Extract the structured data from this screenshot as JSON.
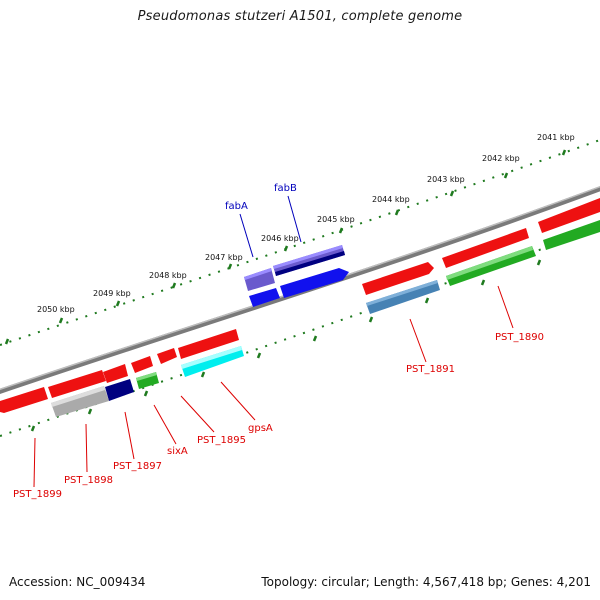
{
  "header": {
    "title": "Pseudomonas stutzeri A1501, complete genome"
  },
  "footer": {
    "accession": "Accession: NC_009434",
    "summary": "Topology: circular; Length: 4,567,418 bp; Genes: 4,201"
  },
  "scale_labels": [
    "2041 kbp",
    "2042 kbp",
    "2043 kbp",
    "2044 kbp",
    "2045 kbp",
    "2046 kbp",
    "2047 kbp",
    "2048 kbp",
    "2049 kbp",
    "2050 kbp"
  ],
  "gene_labels": {
    "fabA": "fabA",
    "fabB": "fabB",
    "PST_1890": "PST_1890",
    "PST_1891": "PST_1891",
    "gpsA": "gpsA",
    "PST_1895": "PST_1895",
    "sixA": "sixA",
    "PST_1897": "PST_1897",
    "PST_1898": "PST_1898",
    "PST_1899": "PST_1899"
  },
  "colors": {
    "backbone": "#7a7a7a",
    "ticks": "#1f7a1f",
    "red_gene": "#ee1111",
    "green_gene": "#22aa22",
    "blue_gene": "#1111ee",
    "navy_gene": "#000080",
    "slate_gene": "#6a5acd",
    "steel_gene": "#4682b4",
    "cyan_gene": "#00eeee",
    "gray_gene": "#bbbbbb",
    "label_red": "#dd0000",
    "label_blue": "#0000bb"
  }
}
